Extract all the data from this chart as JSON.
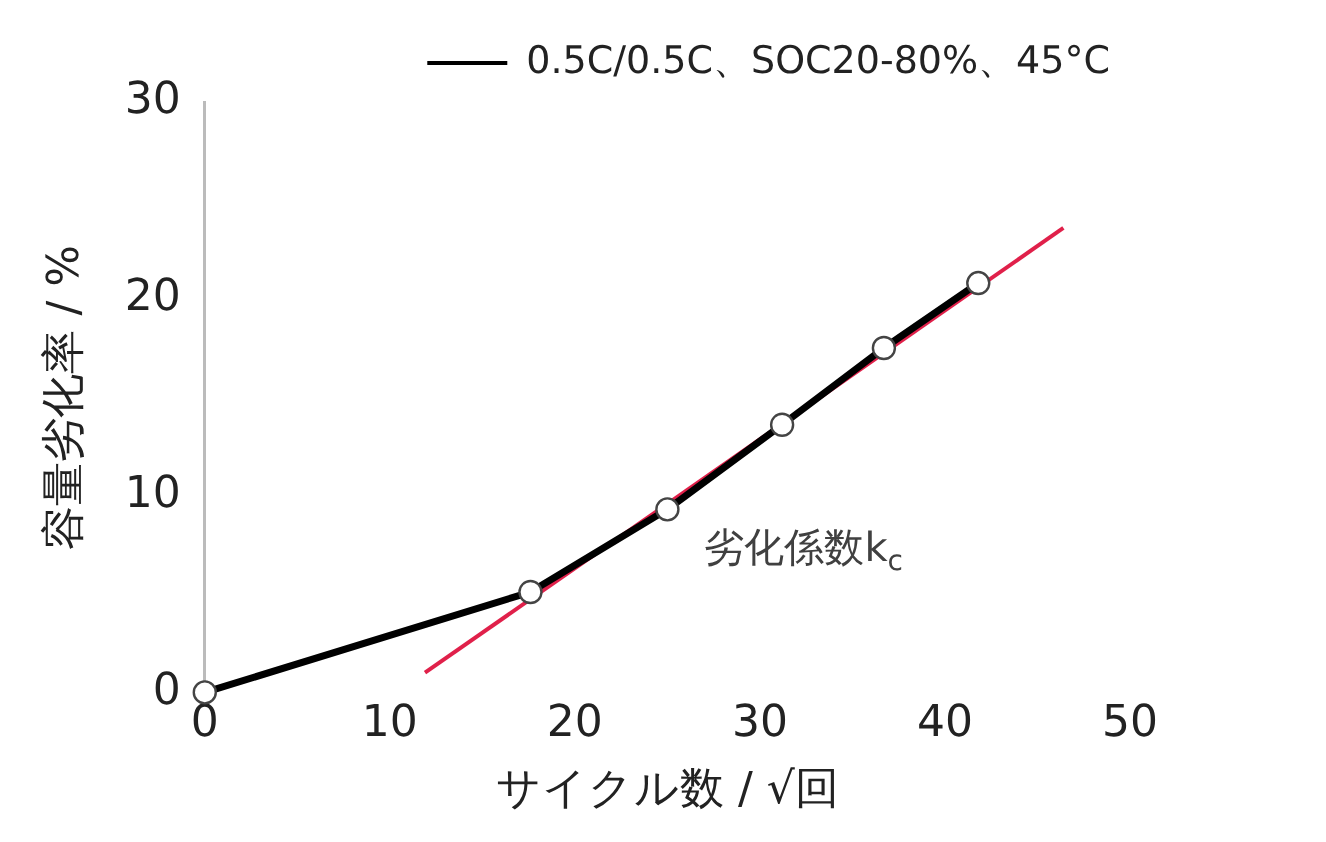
{
  "chart_data": {
    "type": "line",
    "xlabel": "サイクル数 / √回",
    "ylabel": "容量劣化率 / %",
    "xlim": [
      0,
      50
    ],
    "xticks": [
      0,
      10,
      20,
      30,
      40,
      50
    ],
    "ylim": [
      0,
      30
    ],
    "yticks": [
      0,
      10,
      20,
      30
    ],
    "grid": false,
    "legend": "top right",
    "marker": "circle",
    "line_style": "solid",
    "series": [
      {
        "name": "0.5C/0.5C、SOC20-80%、45°C",
        "color": "#000000",
        "x": [
          0,
          17.6,
          25.0,
          31.2,
          36.7,
          41.8
        ],
        "values": [
          0,
          5.1,
          9.3,
          13.6,
          17.5,
          20.8
        ]
      },
      {
        "type": "line",
        "color": "#e0204a",
        "marker": "none",
        "x": [
          11.9,
          46.4
        ],
        "values": [
          1.0,
          23.6
        ]
      }
    ],
    "annotations": [
      "劣化係数k$_{c}$"
    ]
  }
}
